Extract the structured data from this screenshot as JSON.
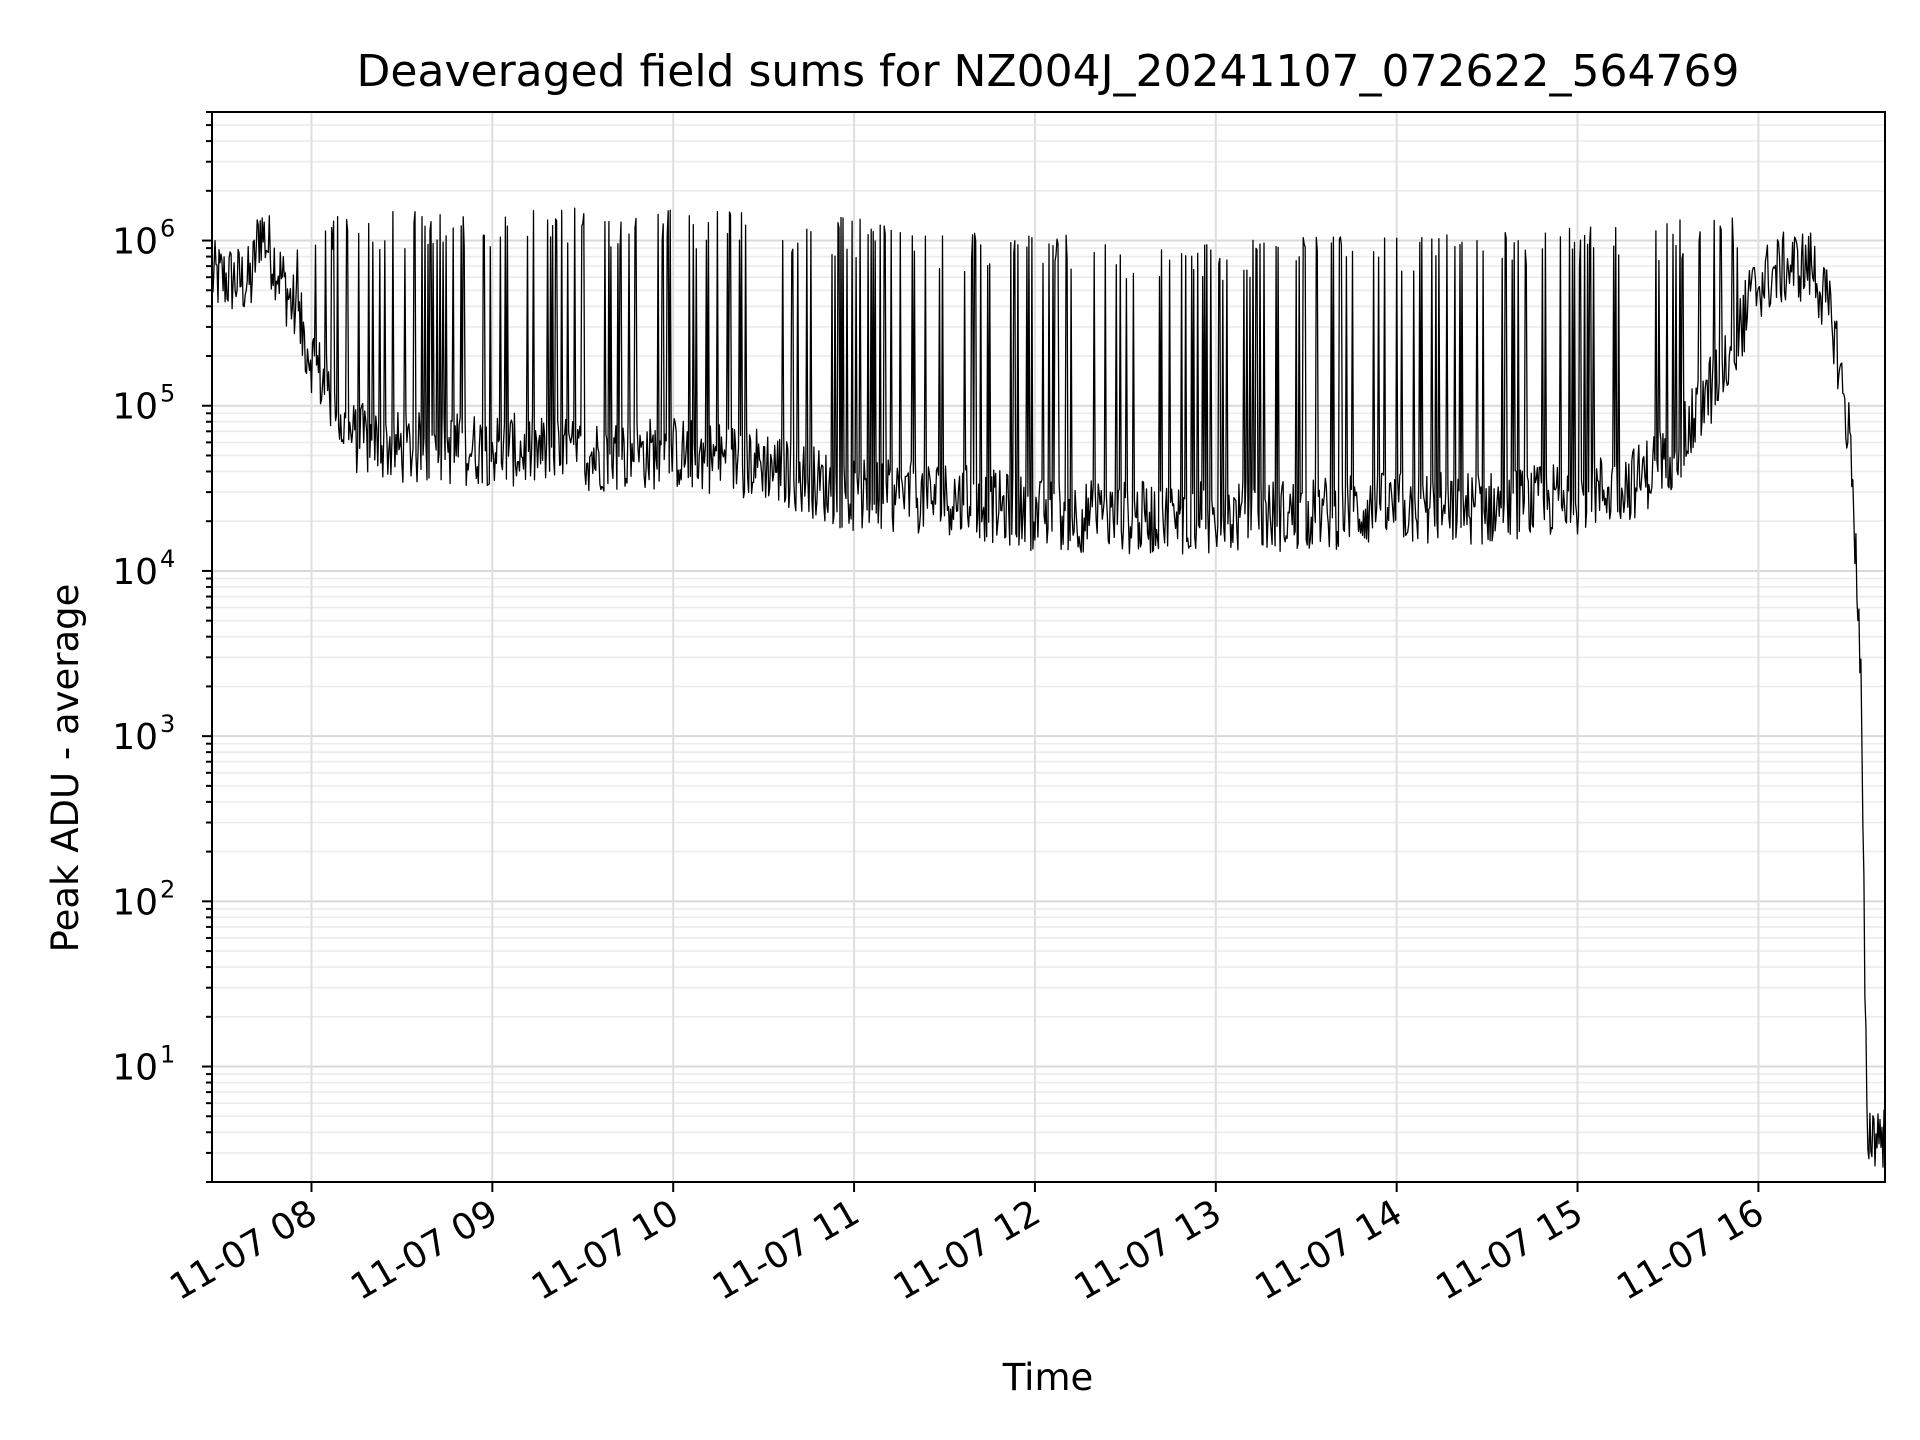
{
  "chart_data": {
    "type": "line",
    "title": "Deaveraged field sums for NZ004J_20241107_072622_564769",
    "xlabel": "Time",
    "ylabel": "Peak ADU - average",
    "yscale": "log",
    "ylim": [
      2,
      6000000
    ],
    "xlim": [
      "2024-11-07 07:27",
      "2024-11-07 16:42"
    ],
    "grid": {
      "major": true,
      "minor_y": true
    },
    "x_tick_labels": [
      "11-07 08",
      "11-07 09",
      "11-07 10",
      "11-07 11",
      "11-07 12",
      "11-07 13",
      "11-07 14",
      "11-07 15",
      "11-07 16"
    ],
    "x_tick_times": [
      "2024-11-07 08:00",
      "2024-11-07 09:00",
      "2024-11-07 10:00",
      "2024-11-07 11:00",
      "2024-11-07 12:00",
      "2024-11-07 13:00",
      "2024-11-07 14:00",
      "2024-11-07 15:00",
      "2024-11-07 16:00"
    ],
    "y_tick_base": "10",
    "y_tick_exponents": [
      "1",
      "2",
      "3",
      "4",
      "5",
      "6"
    ],
    "line_color": "#000000",
    "envelope": {
      "x": [
        "2024-11-07 07:27",
        "2024-11-07 07:40",
        "2024-11-07 07:43",
        "2024-11-07 07:50",
        "2024-11-07 08:00",
        "2024-11-07 08:12",
        "2024-11-07 08:30",
        "2024-11-07 09:00",
        "2024-11-07 09:30",
        "2024-11-07 10:00",
        "2024-11-07 10:30",
        "2024-11-07 11:00",
        "2024-11-07 11:30",
        "2024-11-07 12:00",
        "2024-11-07 12:30",
        "2024-11-07 13:00",
        "2024-11-07 13:30",
        "2024-11-07 14:00",
        "2024-11-07 14:30",
        "2024-11-07 15:00",
        "2024-11-07 15:20",
        "2024-11-07 15:35",
        "2024-11-07 15:50",
        "2024-11-07 16:00",
        "2024-11-07 16:10",
        "2024-11-07 16:18",
        "2024-11-07 16:25",
        "2024-11-07 16:31",
        "2024-11-07 16:34",
        "2024-11-07 16:36",
        "2024-11-07 16:42"
      ],
      "baseline": [
        600000,
        560000,
        1200000,
        600000,
        200000,
        65000,
        55000,
        55000,
        50000,
        52000,
        45000,
        28000,
        28000,
        22000,
        21000,
        21000,
        22000,
        24000,
        24000,
        28000,
        35000,
        60000,
        200000,
        550000,
        700000,
        700000,
        300000,
        50000,
        2000,
        4,
        4
      ],
      "spike_max": [
        700000,
        800000,
        3000000,
        750000,
        1400000,
        1500000,
        1500000,
        1500000,
        1600000,
        1600000,
        1500000,
        1400000,
        1200000,
        1100000,
        1050000,
        1000000,
        1050000,
        1100000,
        1150000,
        1200000,
        1300000,
        1400000,
        1400000,
        1400000,
        1100000,
        1200000,
        300000,
        50000,
        2000,
        4,
        4
      ]
    }
  }
}
